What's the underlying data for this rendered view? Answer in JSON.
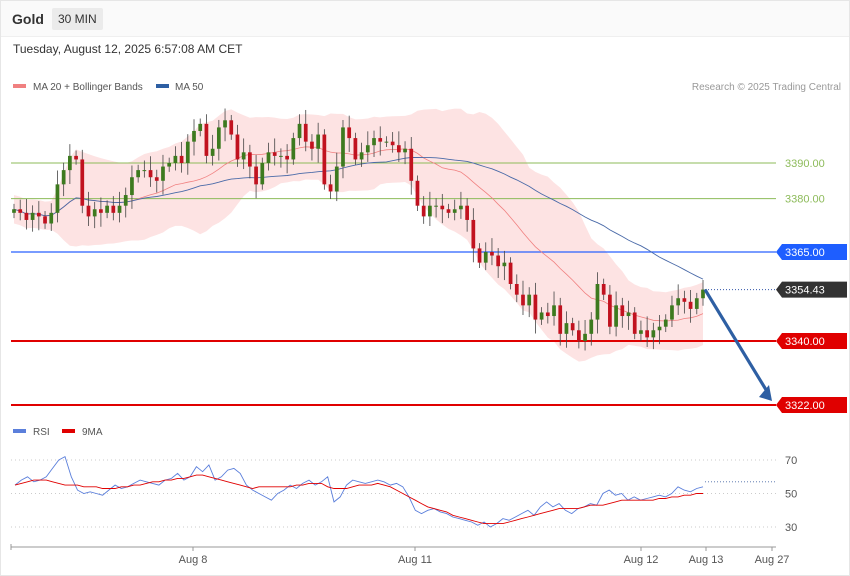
{
  "header": {
    "instrument": "Gold",
    "timeframe": "30 MIN",
    "timestamp": "Tuesday, August 12, 2025 6:57:08 AM CET"
  },
  "credit": "Research © 2025 Trading Central",
  "chart_data": [
    {
      "type": "candlestick",
      "legend": [
        {
          "label": "MA 20 + Bollinger Bands",
          "color": "#f08080"
        },
        {
          "label": "MA 50",
          "color": "#2e5fa3"
        }
      ],
      "legend_position": "top-left",
      "x_ticks": [
        "Aug 8",
        "Aug 11",
        "Aug 12",
        "Aug 13",
        "Aug 27"
      ],
      "y_range": [
        3313,
        3415
      ],
      "levels": [
        {
          "label": "3390.00",
          "value": 3390,
          "kind": "thin",
          "color": "#8dbb5a"
        },
        {
          "label": "3380.00",
          "value": 3380,
          "kind": "thin",
          "color": "#8dbb5a"
        },
        {
          "label": "3365.00",
          "value": 3365,
          "kind": "resistance",
          "color": "#2962ff"
        },
        {
          "label": "3354.43",
          "value": 3354.43,
          "kind": "current",
          "color": "#333333"
        },
        {
          "label": "3340.00",
          "value": 3340,
          "kind": "support",
          "color": "#e00000"
        },
        {
          "label": "3322.00",
          "value": 3322,
          "kind": "support",
          "color": "#e00000"
        }
      ],
      "forecast_arrow": {
        "from_value": 3354.43,
        "to_value": 3322,
        "color": "#2e5fa3"
      },
      "close_series": [
        3377,
        3376,
        3374,
        3376,
        3375,
        3373,
        3376,
        3384,
        3388,
        3392,
        3391,
        3378,
        3375,
        3377,
        3376,
        3378,
        3376,
        3378,
        3381,
        3386,
        3388,
        3388,
        3386,
        3385,
        3389,
        3390,
        3392,
        3390,
        3396,
        3399,
        3401,
        3392,
        3394,
        3400,
        3402,
        3398,
        3391,
        3393,
        3389,
        3384,
        3390,
        3393,
        3392,
        3392,
        3391,
        3397,
        3401,
        3396,
        3394,
        3398,
        3384,
        3382,
        3389,
        3400,
        3397,
        3391,
        3393,
        3395,
        3397,
        3396,
        3396,
        3395,
        3393,
        3394,
        3385,
        3378,
        3375,
        3378,
        3378,
        3377,
        3376,
        3377,
        3378,
        3374,
        3366,
        3362,
        3365,
        3364,
        3361,
        3362,
        3356,
        3353,
        3350,
        3353,
        3346,
        3348,
        3347,
        3350,
        3342,
        3345,
        3343,
        3340,
        3342,
        3346,
        3356,
        3353,
        3344,
        3350,
        3347,
        3348,
        3342,
        3343,
        3341,
        3343,
        3344,
        3346,
        3350,
        3352,
        3351,
        3349,
        3352,
        3354.43
      ]
    },
    {
      "type": "line",
      "legend": [
        {
          "label": "RSI",
          "color": "#5b7fdb"
        },
        {
          "label": "9MA",
          "color": "#e00000"
        }
      ],
      "y_ticks": [
        "70",
        "50",
        "30"
      ],
      "y_range": [
        25,
        77
      ],
      "rsi": [
        55,
        58,
        60,
        57,
        58,
        60,
        65,
        70,
        72,
        60,
        52,
        50,
        51,
        50,
        49,
        52,
        55,
        53,
        54,
        56,
        58,
        57,
        56,
        55,
        58,
        59,
        62,
        58,
        60,
        66,
        63,
        67,
        58,
        60,
        64,
        65,
        62,
        55,
        52,
        50,
        48,
        46,
        50,
        52,
        55,
        53,
        56,
        58,
        55,
        57,
        60,
        45,
        48,
        55,
        58,
        57,
        56,
        57,
        58,
        57,
        55,
        56,
        54,
        48,
        40,
        38,
        40,
        41,
        39,
        38,
        36,
        35,
        34,
        33,
        31,
        33,
        30,
        32,
        35,
        34,
        36,
        38,
        40,
        37,
        42,
        45,
        42,
        44,
        40,
        38,
        41,
        42,
        44,
        43,
        50,
        52,
        49,
        50,
        46,
        48,
        46,
        47,
        48,
        49,
        48,
        50,
        54,
        52,
        51,
        53,
        54
      ],
      "rsi_ma": [
        55,
        56,
        57,
        58,
        58,
        58,
        57,
        56,
        55,
        55,
        55,
        54,
        54,
        54,
        53,
        53,
        53,
        54,
        54,
        55,
        55,
        56,
        57,
        57,
        58,
        58,
        59,
        59,
        60,
        61,
        61,
        60,
        59,
        58,
        57,
        56,
        55,
        54,
        53,
        54,
        54,
        54,
        54,
        54,
        54,
        55,
        55,
        56,
        56,
        56,
        54,
        53,
        53,
        53,
        54,
        55,
        55,
        55,
        56,
        55,
        54,
        52,
        50,
        48,
        46,
        44,
        42,
        41,
        40,
        39,
        37,
        36,
        35,
        34,
        33,
        32,
        32,
        32,
        32,
        33,
        34,
        35,
        36,
        37,
        38,
        39,
        40,
        41,
        41,
        41,
        41,
        42,
        43,
        43,
        43,
        44,
        45,
        46,
        46,
        46,
        46,
        46,
        46,
        47,
        47,
        48,
        48,
        49,
        49,
        50,
        50
      ],
      "y_range_note": ""
    }
  ]
}
